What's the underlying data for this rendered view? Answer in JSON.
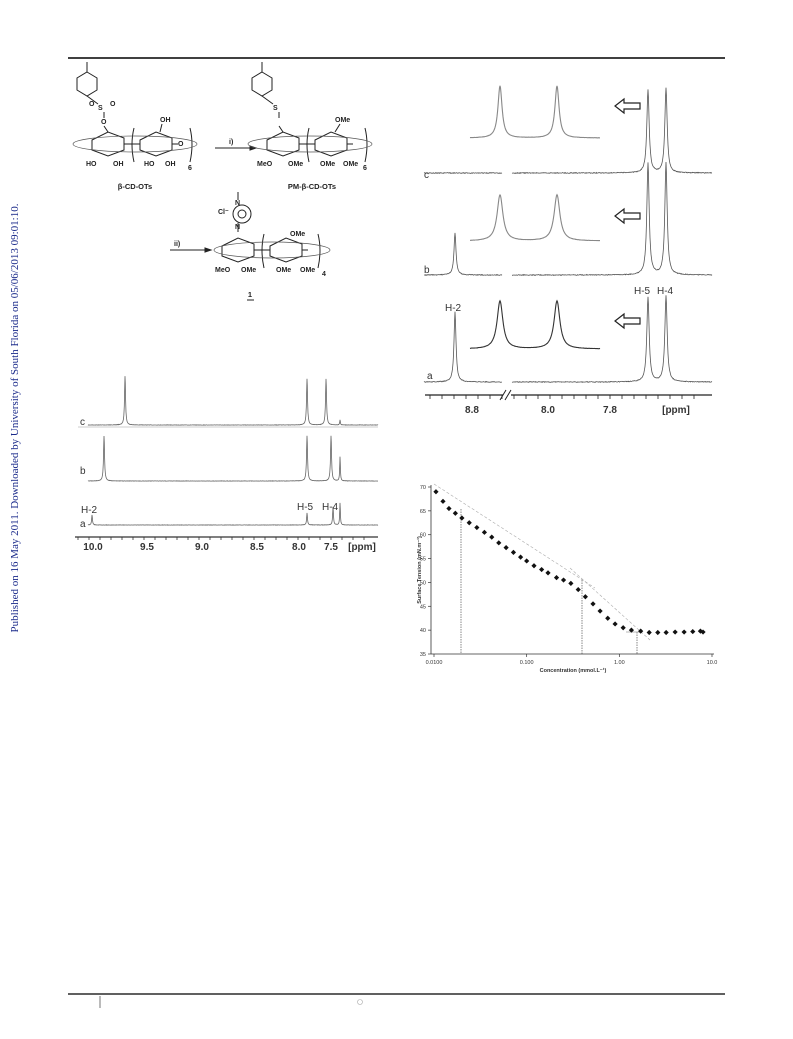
{
  "sidebar": "Published on 16 May 2011. Downloaded by University of South Florida on 05/06/2013 09:01:10.",
  "scheme": {
    "atoms": [
      "S",
      "O",
      "O",
      "O",
      "OH",
      "HO",
      "OH",
      "HO",
      "OH",
      "O",
      "6",
      "S",
      "OMe",
      "MeO",
      "OMe",
      "OMe",
      "OMe",
      "6",
      "Cl⁻",
      "N",
      "N",
      "OMe",
      "MeO",
      "OMe",
      "OMe",
      "OMe",
      "4"
    ],
    "reagents": [
      "i)",
      "ii)"
    ],
    "compounds": [
      "β-CD-OTs",
      "PM-β-CD-OTs",
      "1"
    ]
  },
  "nmr_left": {
    "traces": [
      "c",
      "b",
      "a"
    ],
    "peaks": [
      "H-2",
      "H-5",
      "H-4"
    ],
    "ticks": [
      "10.0",
      "9.5",
      "9.0",
      "8.5",
      "8.0",
      "7.5"
    ],
    "unit": "[ppm]"
  },
  "nmr_right": {
    "traces": [
      "c",
      "b",
      "a"
    ],
    "peaks": [
      "H-2",
      "H-5",
      "H-4"
    ],
    "ticks": [
      "8.8",
      "8.0",
      "7.8"
    ],
    "unit": "[ppm]"
  },
  "chart_data": {
    "type": "scatter",
    "x_label": "Concentration (mmol.L⁻¹)",
    "y_label": "Surface Tension (mN.m⁻¹)",
    "x": [
      0.0105,
      0.0125,
      0.0145,
      0.017,
      0.02,
      0.024,
      0.029,
      0.035,
      0.042,
      0.05,
      0.06,
      0.072,
      0.086,
      0.1,
      0.12,
      0.145,
      0.17,
      0.21,
      0.25,
      0.3,
      0.36,
      0.43,
      0.52,
      0.62,
      0.75,
      0.9,
      1.1,
      1.35,
      1.7,
      2.1,
      2.6,
      3.2,
      4,
      5,
      6.2,
      7.5,
      8
    ],
    "values": [
      69,
      67,
      65.5,
      64.5,
      63.5,
      62.5,
      61.5,
      60.5,
      59.5,
      58.3,
      57.3,
      56.3,
      55.3,
      54.5,
      53.5,
      52.7,
      52,
      51,
      50.5,
      49.8,
      48.5,
      47,
      45.5,
      44,
      42.5,
      41.3,
      40.5,
      40,
      39.8,
      39.5,
      39.5,
      39.5,
      39.6,
      39.6,
      39.7,
      39.8,
      39.6
    ],
    "color": "#111111",
    "log_x": true,
    "xlim": [
      0.01,
      10
    ],
    "ylim": [
      35,
      70
    ],
    "xticks": [
      {
        "value": 0.01,
        "label": "0.0100"
      },
      {
        "value": 0.1,
        "label": "0.100"
      },
      {
        "value": 1,
        "label": "1.00"
      },
      {
        "value": 10,
        "label": "10.0"
      }
    ],
    "yticks": [
      35,
      40,
      45,
      50,
      55,
      60,
      65,
      70
    ]
  }
}
